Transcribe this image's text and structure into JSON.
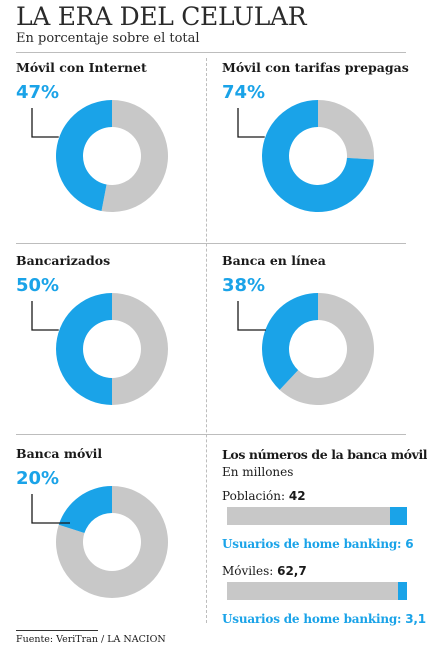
{
  "header": {
    "title": "LA ERA DEL CELULAR",
    "subtitle": "En porcentaje sobre el total"
  },
  "colors": {
    "accent": "#1aa3e8",
    "remainder": "#c8c8c8",
    "text": "#1a1a1a"
  },
  "chart_data": [
    {
      "type": "pie",
      "title": "Móvil con Internet",
      "label": "47%",
      "value": 47,
      "total": 100
    },
    {
      "type": "pie",
      "title": "Móvil con tarifas prepagas",
      "label": "74%",
      "value": 74,
      "total": 100
    },
    {
      "type": "pie",
      "title": "Bancarizados",
      "label": "50%",
      "value": 50,
      "total": 100
    },
    {
      "type": "pie",
      "title": "Banca en línea",
      "label": "38%",
      "value": 38,
      "total": 100
    },
    {
      "type": "pie",
      "title": "Banca móvil",
      "label": "20%",
      "value": 20,
      "total": 100
    },
    {
      "type": "bar",
      "title": "Los números de la banca móvil",
      "subtitle": "En millones",
      "groups": [
        {
          "label": "Población:",
          "value_label": "42",
          "total": 42,
          "part_label": "Usuarios de home banking:",
          "part_value_label": "6",
          "part": 6
        },
        {
          "label": "Móviles:",
          "value_label": "62,7",
          "total": 62.7,
          "part_label": "Usuarios de home banking:",
          "part_value_label": "3,1",
          "part": 3.1
        }
      ]
    }
  ],
  "footer": {
    "source": "Fuente: VeriTran / LA NACION"
  }
}
